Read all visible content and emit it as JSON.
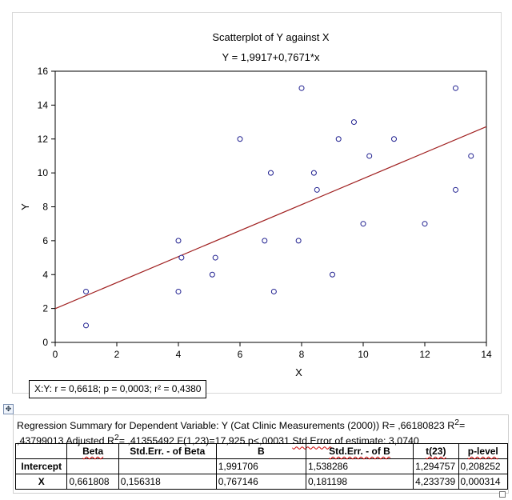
{
  "chart_data": {
    "type": "scatter",
    "title": "Scatterplot of Y against X",
    "subtitle": "Y = 1,9917+0,7671*x",
    "xlabel": "X",
    "ylabel": "Y",
    "xlim": [
      0,
      14
    ],
    "ylim": [
      0,
      16
    ],
    "xticks": [
      "0",
      "2",
      "4",
      "6",
      "8",
      "10",
      "12",
      "14"
    ],
    "yticks": [
      "0",
      "2",
      "4",
      "6",
      "8",
      "10",
      "12",
      "14",
      "16"
    ],
    "grid": false,
    "points": [
      {
        "x": 1,
        "y": 1
      },
      {
        "x": 1,
        "y": 3
      },
      {
        "x": 4,
        "y": 3
      },
      {
        "x": 4,
        "y": 6
      },
      {
        "x": 4.1,
        "y": 5
      },
      {
        "x": 5.1,
        "y": 4
      },
      {
        "x": 5.2,
        "y": 5
      },
      {
        "x": 6,
        "y": 12
      },
      {
        "x": 6.8,
        "y": 6
      },
      {
        "x": 7,
        "y": 10
      },
      {
        "x": 7.1,
        "y": 3
      },
      {
        "x": 7.9,
        "y": 6
      },
      {
        "x": 8,
        "y": 15
      },
      {
        "x": 8.4,
        "y": 10
      },
      {
        "x": 8.5,
        "y": 9
      },
      {
        "x": 9,
        "y": 4
      },
      {
        "x": 9.2,
        "y": 12
      },
      {
        "x": 9.7,
        "y": 13
      },
      {
        "x": 10,
        "y": 7
      },
      {
        "x": 10.2,
        "y": 11
      },
      {
        "x": 11,
        "y": 12
      },
      {
        "x": 12,
        "y": 7
      },
      {
        "x": 13,
        "y": 15
      },
      {
        "x": 13,
        "y": 9
      },
      {
        "x": 13.5,
        "y": 11
      }
    ],
    "regression": {
      "intercept": 1.9917,
      "slope": 0.7671
    },
    "colors": {
      "points": "#1f1f8f",
      "line": "#a02020",
      "axes": "#000000"
    }
  },
  "stats_box": "X:Y:   r = 0,6618; p = 0,0003; r² = 0,4380",
  "summary": {
    "line1a": "Regression Summary  for Dependent Variable:  Y (Cat Clinic Measurements  (2000))  R= ,66180823  R",
    "line1sup": "2",
    "line1b": "=",
    "line2a": ",43799013  Adjusted R",
    "line2sup": "2",
    "line2b": "= ,41355492  F(1,23)=17,925  p<,00031 ",
    "line2c": "Std.Error",
    "line2d": " of estimate: 3,0740"
  },
  "table": {
    "headers": [
      "",
      "Beta",
      "Std.Err. - of Beta",
      "B",
      "Std.Err. - of B",
      "t(23)",
      "p-level"
    ],
    "rows": [
      [
        "Intercept",
        "",
        "",
        "1,991706",
        "1,538286",
        "1,294757",
        "0,208252"
      ],
      [
        "X",
        "0,661808",
        "0,156318",
        "0,767146",
        "0,181198",
        "4,233739",
        "0,000314"
      ]
    ]
  }
}
